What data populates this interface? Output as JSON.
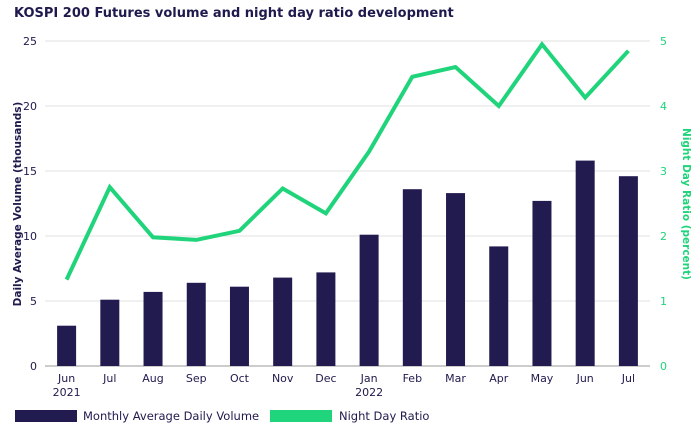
{
  "chart_data": {
    "type": "bar+line",
    "title": "KOSPI 200 Futures volume and night day ratio development",
    "categories": [
      [
        "Jun",
        "2021"
      ],
      [
        "Jul",
        ""
      ],
      [
        "Aug",
        ""
      ],
      [
        "Sep",
        ""
      ],
      [
        "Oct",
        ""
      ],
      [
        "Nov",
        ""
      ],
      [
        "Dec",
        ""
      ],
      [
        "Jan",
        "2022"
      ],
      [
        "Feb",
        ""
      ],
      [
        "Mar",
        ""
      ],
      [
        "Apr",
        ""
      ],
      [
        "May",
        ""
      ],
      [
        "Jun",
        ""
      ],
      [
        "Jul",
        ""
      ]
    ],
    "series": [
      {
        "name": "Monthly Average Daily Volume",
        "type": "bar",
        "axis": "left",
        "color": "#221b4f",
        "values": [
          3.1,
          5.1,
          5.7,
          6.4,
          6.1,
          6.8,
          7.2,
          10.1,
          13.6,
          13.3,
          9.2,
          12.7,
          15.8,
          14.6
        ]
      },
      {
        "name": "Night Day Ratio",
        "type": "line",
        "axis": "right",
        "color": "#1fd47a",
        "values": [
          1.33,
          2.75,
          1.98,
          1.94,
          2.08,
          2.73,
          2.35,
          3.3,
          4.45,
          4.6,
          4.0,
          4.95,
          4.13,
          4.85
        ]
      }
    ],
    "y_left": {
      "label": "Daily Average Volume (thousands)",
      "ylim": [
        0,
        25
      ],
      "ticks": [
        "0",
        "5",
        "10",
        "15",
        "20",
        "25"
      ]
    },
    "y_right": {
      "label": "Night Day Ratio (percent)",
      "ylim": [
        0,
        5
      ],
      "ticks": [
        "0",
        "1",
        "2",
        "3",
        "4",
        "5"
      ]
    },
    "grid": true,
    "legend_placement": "bottom-left"
  }
}
